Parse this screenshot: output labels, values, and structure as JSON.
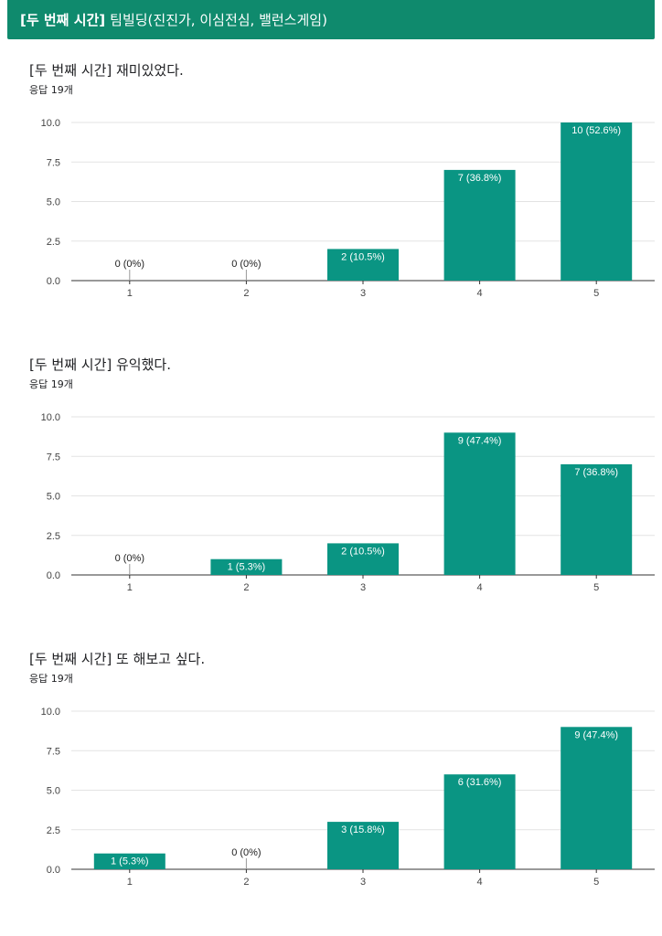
{
  "header": {
    "bold": "[두 번째 시간]",
    "title": "팀빌딩(진진가, 이심전심, 밸런스게임)"
  },
  "colors": {
    "header": "#0f8a6d",
    "bar": "#0a9583"
  },
  "questions": [
    {
      "title": "[두 번째 시간] 재미있었다.",
      "responses": "응답 19개",
      "chart_data": {
        "type": "bar",
        "categories": [
          "1",
          "2",
          "3",
          "4",
          "5"
        ],
        "values": [
          0,
          0,
          2,
          7,
          10
        ],
        "labels": [
          "0 (0%)",
          "0 (0%)",
          "2 (10.5%)",
          "7 (36.8%)",
          "10 (52.6%)"
        ],
        "ylim": [
          0,
          10
        ],
        "yticks": [
          "0.0",
          "2.5",
          "5.0",
          "7.5",
          "10.0"
        ],
        "grid": true
      }
    },
    {
      "title": "[두 번째 시간] 유익했다.",
      "responses": "응답 19개",
      "chart_data": {
        "type": "bar",
        "categories": [
          "1",
          "2",
          "3",
          "4",
          "5"
        ],
        "values": [
          0,
          1,
          2,
          9,
          7
        ],
        "labels": [
          "0 (0%)",
          "1 (5.3%)",
          "2 (10.5%)",
          "9 (47.4%)",
          "7 (36.8%)"
        ],
        "ylim": [
          0,
          10
        ],
        "yticks": [
          "0.0",
          "2.5",
          "5.0",
          "7.5",
          "10.0"
        ],
        "grid": true
      }
    },
    {
      "title": "[두 번째 시간] 또 해보고 싶다.",
      "responses": "응답 19개",
      "chart_data": {
        "type": "bar",
        "categories": [
          "1",
          "2",
          "3",
          "4",
          "5"
        ],
        "values": [
          1,
          0,
          3,
          6,
          9
        ],
        "labels": [
          "1 (5.3%)",
          "0 (0%)",
          "3 (15.8%)",
          "6 (31.6%)",
          "9 (47.4%)"
        ],
        "ylim": [
          0,
          10
        ],
        "yticks": [
          "0.0",
          "2.5",
          "5.0",
          "7.5",
          "10.0"
        ],
        "grid": true
      }
    }
  ]
}
